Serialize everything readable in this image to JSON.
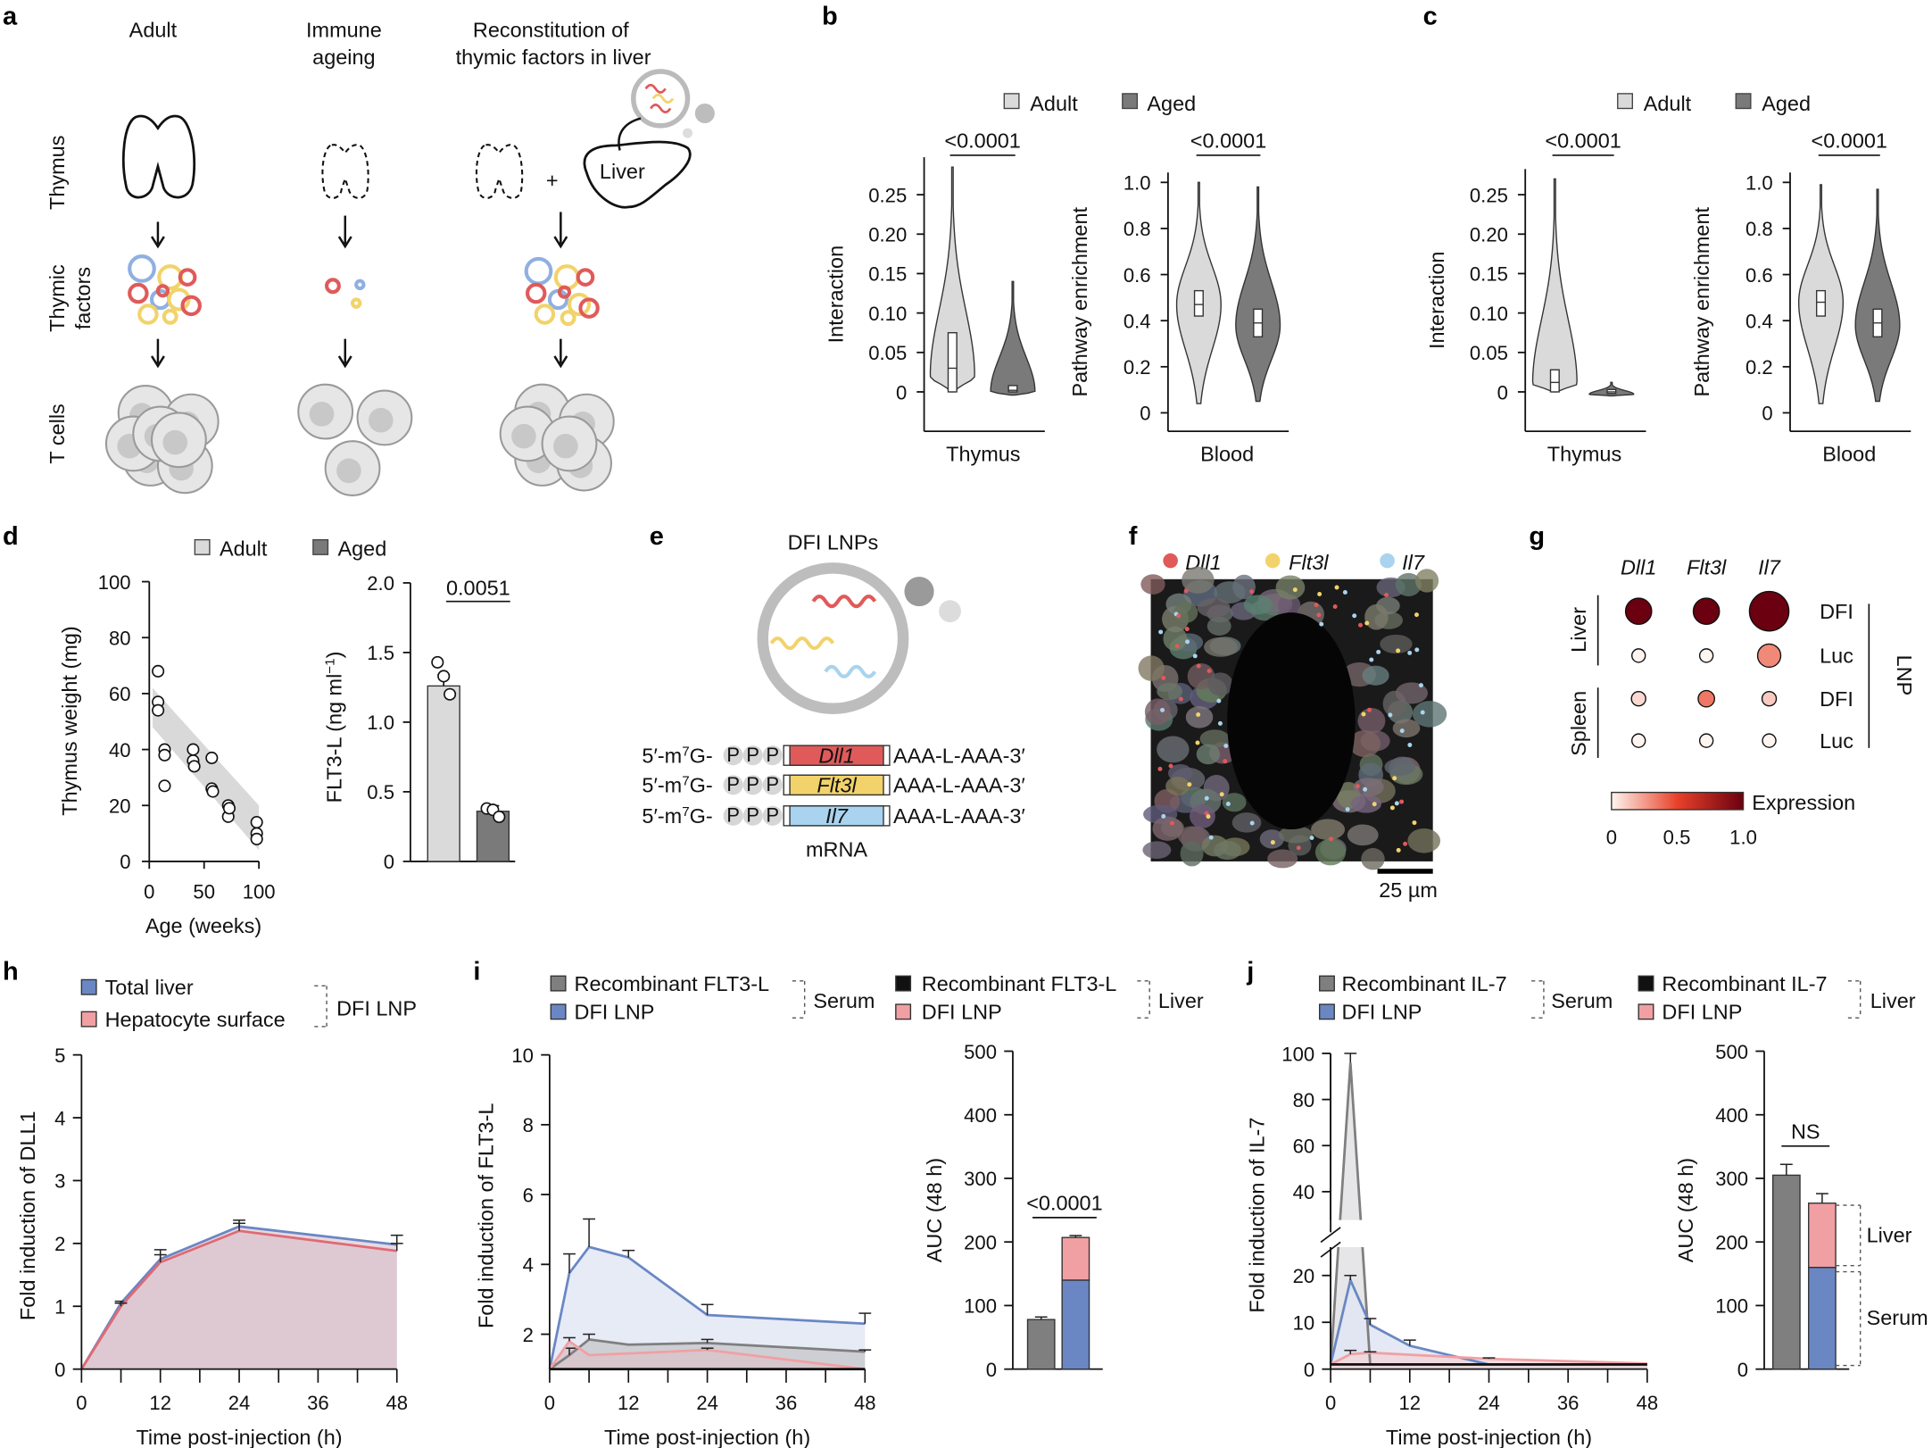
{
  "panel_labels": {
    "a": "a",
    "b": "b",
    "c": "c",
    "d": "d",
    "e": "e",
    "f": "f",
    "g": "g",
    "h": "h",
    "i": "i",
    "j": "j"
  },
  "colors": {
    "adult": "#dadada",
    "aged": "#7a7a7a",
    "dfi_serum": "#6a87c4",
    "dfi_liver": "#f0a0a3",
    "recombinant_serum": "#7f7f7f",
    "recombinant_liver": "#111111",
    "dll1": "#e05a5a",
    "flt3l": "#f2d36b",
    "il7": "#a9d3ee"
  },
  "a": {
    "col_adult": "Adult",
    "col_ageing": [
      "Immune",
      "ageing"
    ],
    "col_recon": [
      "Reconstitution of",
      "thymic factors in liver"
    ],
    "row_thymus": "Thymus",
    "row_factors": [
      "Thymic",
      "factors"
    ],
    "row_tcells": "T cells",
    "liver": "Liver",
    "plus": "+"
  },
  "legend_bc": {
    "adult": "Adult",
    "aged": "Aged"
  },
  "legend_d": {
    "adult": "Adult",
    "aged": "Aged"
  },
  "e": {
    "title": "DFI LNPs",
    "cap": "5′-m",
    "cap_sup": "7",
    "cap_g": "G-",
    "ppp": [
      "P",
      "P",
      "P"
    ],
    "genes": [
      "Dll1",
      "Flt3l",
      "Il7"
    ],
    "tail": "AAA-L-AAA-3′",
    "mrna": "mRNA"
  },
  "f": {
    "legend": [
      "Dll1",
      "Flt3l",
      "Il7"
    ],
    "scale_bar": "25 µm"
  },
  "h_legend": {
    "items": [
      "Total liver",
      "Hepatocyte surface"
    ],
    "group": "DFI LNP"
  },
  "i_legend": {
    "serum_items": [
      "Recombinant FLT3-L",
      "DFI LNP"
    ],
    "serum": "Serum",
    "liver_items": [
      "Recombinant FLT3-L",
      "DFI LNP"
    ],
    "liver": "Liver"
  },
  "j_legend": {
    "serum_items": [
      "Recombinant IL-7",
      "DFI LNP"
    ],
    "serum": "Serum",
    "liver_items": [
      "Recombinant IL-7",
      "DFI LNP"
    ],
    "liver": "Liver",
    "bar_liver": "Liver",
    "bar_serum": "Serum"
  },
  "chart_data": [
    {
      "type": "violin",
      "panel": "b",
      "ylabel": "Interaction",
      "xlabel": "Thymus",
      "yticks": [
        "0",
        "0.05",
        "0.10",
        "0.15",
        "0.20",
        "0.25"
      ],
      "p_value": "<0.0001",
      "groups": [
        {
          "name": "Adult",
          "min": 0,
          "q1": 0.0,
          "median": 0.03,
          "q3": 0.075,
          "max": 0.285,
          "mode": 0.02
        },
        {
          "name": "Aged",
          "min": -0.004,
          "q1": 0.0,
          "median": 0.002,
          "q3": 0.008,
          "max": 0.14,
          "mode": 0.0
        }
      ]
    },
    {
      "type": "violin",
      "panel": "b",
      "ylabel": "Pathway enrichment",
      "xlabel": "Blood",
      "yticks": [
        "0",
        "0.2",
        "0.4",
        "0.6",
        "0.8",
        "1.0"
      ],
      "p_value": "<0.0001",
      "groups": [
        {
          "name": "Adult",
          "min": 0.04,
          "q1": 0.42,
          "median": 0.47,
          "q3": 0.53,
          "max": 1.0,
          "mode": 0.47
        },
        {
          "name": "Aged",
          "min": 0.05,
          "q1": 0.33,
          "median": 0.39,
          "q3": 0.45,
          "max": 0.98,
          "mode": 0.38
        }
      ]
    },
    {
      "type": "violin",
      "panel": "c",
      "ylabel": "Interaction",
      "xlabel": "Thymus",
      "yticks": [
        "0",
        "0.05",
        "0.10",
        "0.15",
        "0.20",
        "0.25"
      ],
      "p_value": "<0.0001",
      "groups": [
        {
          "name": "Adult",
          "min": 0,
          "q1": 0.0,
          "median": 0.012,
          "q3": 0.028,
          "max": 0.27,
          "mode": 0.01
        },
        {
          "name": "Aged",
          "min": -0.005,
          "q1": -0.002,
          "median": 0.0,
          "q3": 0.003,
          "max": 0.012,
          "mode": -0.003
        }
      ]
    },
    {
      "type": "violin",
      "panel": "c",
      "ylabel": "Pathway enrichment",
      "xlabel": "Blood",
      "yticks": [
        "0",
        "0.2",
        "0.4",
        "0.6",
        "0.8",
        "1.0"
      ],
      "p_value": "<0.0001",
      "groups": [
        {
          "name": "Adult",
          "min": 0.04,
          "q1": 0.42,
          "median": 0.48,
          "q3": 0.53,
          "max": 0.99,
          "mode": 0.48
        },
        {
          "name": "Aged",
          "min": 0.05,
          "q1": 0.33,
          "median": 0.39,
          "q3": 0.45,
          "max": 0.97,
          "mode": 0.38
        }
      ]
    },
    {
      "type": "scatter",
      "panel": "d",
      "xlabel": "Age (weeks)",
      "ylabel": "Thymus weight (mg)",
      "xlim": [
        0,
        100
      ],
      "ylim": [
        0,
        100
      ],
      "xticks": [
        "0",
        "50",
        "100"
      ],
      "yticks": [
        "0",
        "20",
        "40",
        "60",
        "80",
        "100"
      ],
      "points": [
        [
          8,
          68
        ],
        [
          8,
          57
        ],
        [
          8,
          54
        ],
        [
          14,
          40
        ],
        [
          14,
          38
        ],
        [
          14,
          27
        ],
        [
          40,
          40
        ],
        [
          40,
          36
        ],
        [
          41,
          34
        ],
        [
          57,
          37
        ],
        [
          57,
          26
        ],
        [
          58,
          25
        ],
        [
          72,
          20
        ],
        [
          72,
          16
        ],
        [
          73,
          19
        ],
        [
          98,
          14
        ],
        [
          98,
          10
        ],
        [
          98,
          8
        ]
      ]
    },
    {
      "type": "bar",
      "panel": "d",
      "ylabel": "FLT3-L (ng ml",
      "ylabel_sup": "−1",
      "ylabel_end": ")",
      "ylim": [
        0,
        2.0
      ],
      "yticks": [
        "0",
        "0.5",
        "1.0",
        "1.5",
        "2.0"
      ],
      "p_value": "0.0051",
      "categories": [
        "Adult",
        "Aged"
      ],
      "values": [
        1.26,
        0.36
      ],
      "errors": [
        0.08,
        0.04
      ],
      "points": [
        [
          1.43,
          1.33,
          1.2
        ],
        [
          0.38,
          0.37,
          0.32
        ]
      ]
    },
    {
      "type": "heatmap",
      "panel": "g",
      "columns": [
        "Dll1",
        "Flt3l",
        "Il7"
      ],
      "rows": [
        "DFI",
        "Luc",
        "DFI",
        "Luc"
      ],
      "row_groups": [
        "Liver",
        "Spleen"
      ],
      "group_label": "LNP",
      "colorbar_label": "Expression",
      "colorbar_ticks": [
        "0",
        "0.5",
        "1.0"
      ],
      "expression": [
        [
          1,
          1,
          1
        ],
        [
          0,
          0,
          0.3
        ],
        [
          0.08,
          0.35,
          0.12
        ],
        [
          0,
          0,
          0
        ]
      ],
      "size": [
        [
          0.55,
          0.55,
          1.0
        ],
        [
          0.12,
          0.12,
          0.45
        ],
        [
          0.15,
          0.22,
          0.15
        ],
        [
          0.12,
          0.12,
          0.12
        ]
      ]
    },
    {
      "type": "line",
      "panel": "h",
      "xlabel": "Time post-injection (h)",
      "ylabel": "Fold induction of DLL1",
      "xlim": [
        0,
        48
      ],
      "ylim": [
        0,
        5
      ],
      "xticks": [
        "0",
        "12",
        "24",
        "36",
        "48"
      ],
      "yticks": [
        "0",
        "1",
        "2",
        "3",
        "4",
        "5"
      ],
      "series": [
        {
          "name": "Total liver",
          "x": [
            0,
            6,
            12,
            24,
            48
          ],
          "y": [
            0,
            1.05,
            1.75,
            2.27,
            1.98
          ],
          "error": [
            null,
            0.03,
            0.15,
            0.1,
            0.15
          ],
          "color": "#6a87c4",
          "fill": "#e4d2dc"
        },
        {
          "name": "Hepatocyte surface",
          "x": [
            0,
            6,
            12,
            24,
            48
          ],
          "y": [
            0,
            1.0,
            1.7,
            2.2,
            1.88
          ],
          "error": [
            null,
            0.05,
            0.12,
            0.12,
            0.12
          ],
          "color": "#e06a74",
          "fill": "#dcc6d0"
        }
      ]
    },
    {
      "type": "line",
      "panel": "i",
      "xlabel": "Time post-injection (h)",
      "ylabel": "Fold induction of FLT3-L",
      "xlim": [
        0,
        48
      ],
      "ylim": [
        1,
        10
      ],
      "xticks": [
        "0",
        "12",
        "24",
        "36",
        "48"
      ],
      "yticks": [
        "2",
        "4",
        "6",
        "8",
        "10"
      ],
      "series": [
        {
          "name": "DFI LNP",
          "x": [
            0,
            3,
            6,
            12,
            24,
            48
          ],
          "y": [
            1,
            3.75,
            4.5,
            4.2,
            2.55,
            2.3
          ],
          "error": [
            null,
            0.55,
            0.8,
            0.2,
            0.3,
            0.3
          ],
          "color": "#6a87c4",
          "fill": "#e3e8f4"
        },
        {
          "name": "Recombinant FLT3-L",
          "x": [
            0,
            3,
            6,
            12,
            24,
            48
          ],
          "y": [
            1,
            1.4,
            1.85,
            1.7,
            1.75,
            1.5
          ],
          "error": [
            null,
            0.2,
            0.15,
            null,
            0.1,
            0.05
          ],
          "color": "#7f7f7f",
          "fill": "#c9cace"
        },
        {
          "name": "DFI LNP",
          "x": [
            0,
            3,
            6,
            24,
            48
          ],
          "y": [
            1,
            1.8,
            1.4,
            1.55,
            1.0
          ],
          "error": [
            null,
            0.1,
            null,
            0.05,
            null
          ],
          "color": "#f0a0a3",
          "fill": "#d8c4ca"
        },
        {
          "name": "Recombinant FLT3-L",
          "x": [
            0,
            3,
            6,
            12,
            24,
            48
          ],
          "y": [
            1,
            1,
            1,
            1,
            1,
            1
          ],
          "error": [
            null,
            null,
            null,
            null,
            null,
            null
          ],
          "color": "#111111",
          "fill": null
        }
      ]
    },
    {
      "type": "bar",
      "panel": "i",
      "ylabel": "AUC (48 h)",
      "ylim": [
        0,
        500
      ],
      "yticks": [
        "0",
        "100",
        "200",
        "300",
        "400",
        "500"
      ],
      "p_value": "<0.0001",
      "bars": [
        {
          "segments": [
            {
              "value": 78,
              "color": "#7f7f7f",
              "error": 4
            }
          ]
        },
        {
          "segments": [
            {
              "value": 140,
              "color": "#6a87c4",
              "error": 10
            },
            {
              "value": 67,
              "color": "#f0a0a3",
              "error": 3
            }
          ]
        }
      ]
    },
    {
      "type": "line",
      "panel": "j",
      "xlabel": "Time post-injection (h)",
      "ylabel": "Fold induction of IL-7",
      "xlim": [
        0,
        48
      ],
      "ylim": [
        0,
        100
      ],
      "y_break": [
        25,
        30
      ],
      "xticks": [
        "0",
        "12",
        "24",
        "36",
        "48"
      ],
      "yticks": [
        "0",
        "10",
        "20",
        "40",
        "60",
        "80",
        "100"
      ],
      "series": [
        {
          "name": "Recombinant IL-7",
          "x": [
            0,
            3,
            6,
            12,
            24,
            48
          ],
          "y": [
            1,
            96,
            1,
            1,
            1,
            1
          ],
          "error": [
            null,
            4,
            null,
            null,
            null,
            null
          ],
          "color": "#7f7f7f",
          "fill": "#e2e2e4"
        },
        {
          "name": "DFI LNP",
          "x": [
            0,
            3,
            6,
            12,
            24,
            48
          ],
          "y": [
            1,
            19,
            9.5,
            5,
            1,
            1
          ],
          "error": [
            null,
            1,
            1.3,
            1.2,
            null,
            null
          ],
          "color": "#6a87c4",
          "fill": "#dfe5f3"
        },
        {
          "name": "DFI LNP",
          "x": [
            0,
            3,
            6,
            24,
            48
          ],
          "y": [
            1,
            3.2,
            3.5,
            2.2,
            1.2
          ],
          "error": [
            null,
            0.8,
            0.2,
            0.2,
            null
          ],
          "color": "#f0a0a3",
          "fill": "#eed6da"
        },
        {
          "name": "Recombinant IL-7",
          "x": [
            0,
            3,
            6,
            12,
            24,
            48
          ],
          "y": [
            1,
            1,
            1,
            1,
            1,
            1
          ],
          "error": [
            null,
            null,
            null,
            null,
            null,
            null
          ],
          "color": "#111111",
          "fill": null
        }
      ]
    },
    {
      "type": "bar",
      "panel": "j",
      "ylabel": "AUC (48 h)",
      "ylim": [
        0,
        500
      ],
      "yticks": [
        "0",
        "100",
        "200",
        "300",
        "400",
        "500"
      ],
      "p_value": "NS",
      "bars": [
        {
          "segments": [
            {
              "value": 305,
              "color": "#7f7f7f",
              "error": 17
            }
          ]
        },
        {
          "segments": [
            {
              "value": 160,
              "color": "#6a87c4",
              "error": 18
            },
            {
              "value": 101,
              "color": "#f0a0a3",
              "error": 15
            }
          ]
        }
      ]
    }
  ]
}
